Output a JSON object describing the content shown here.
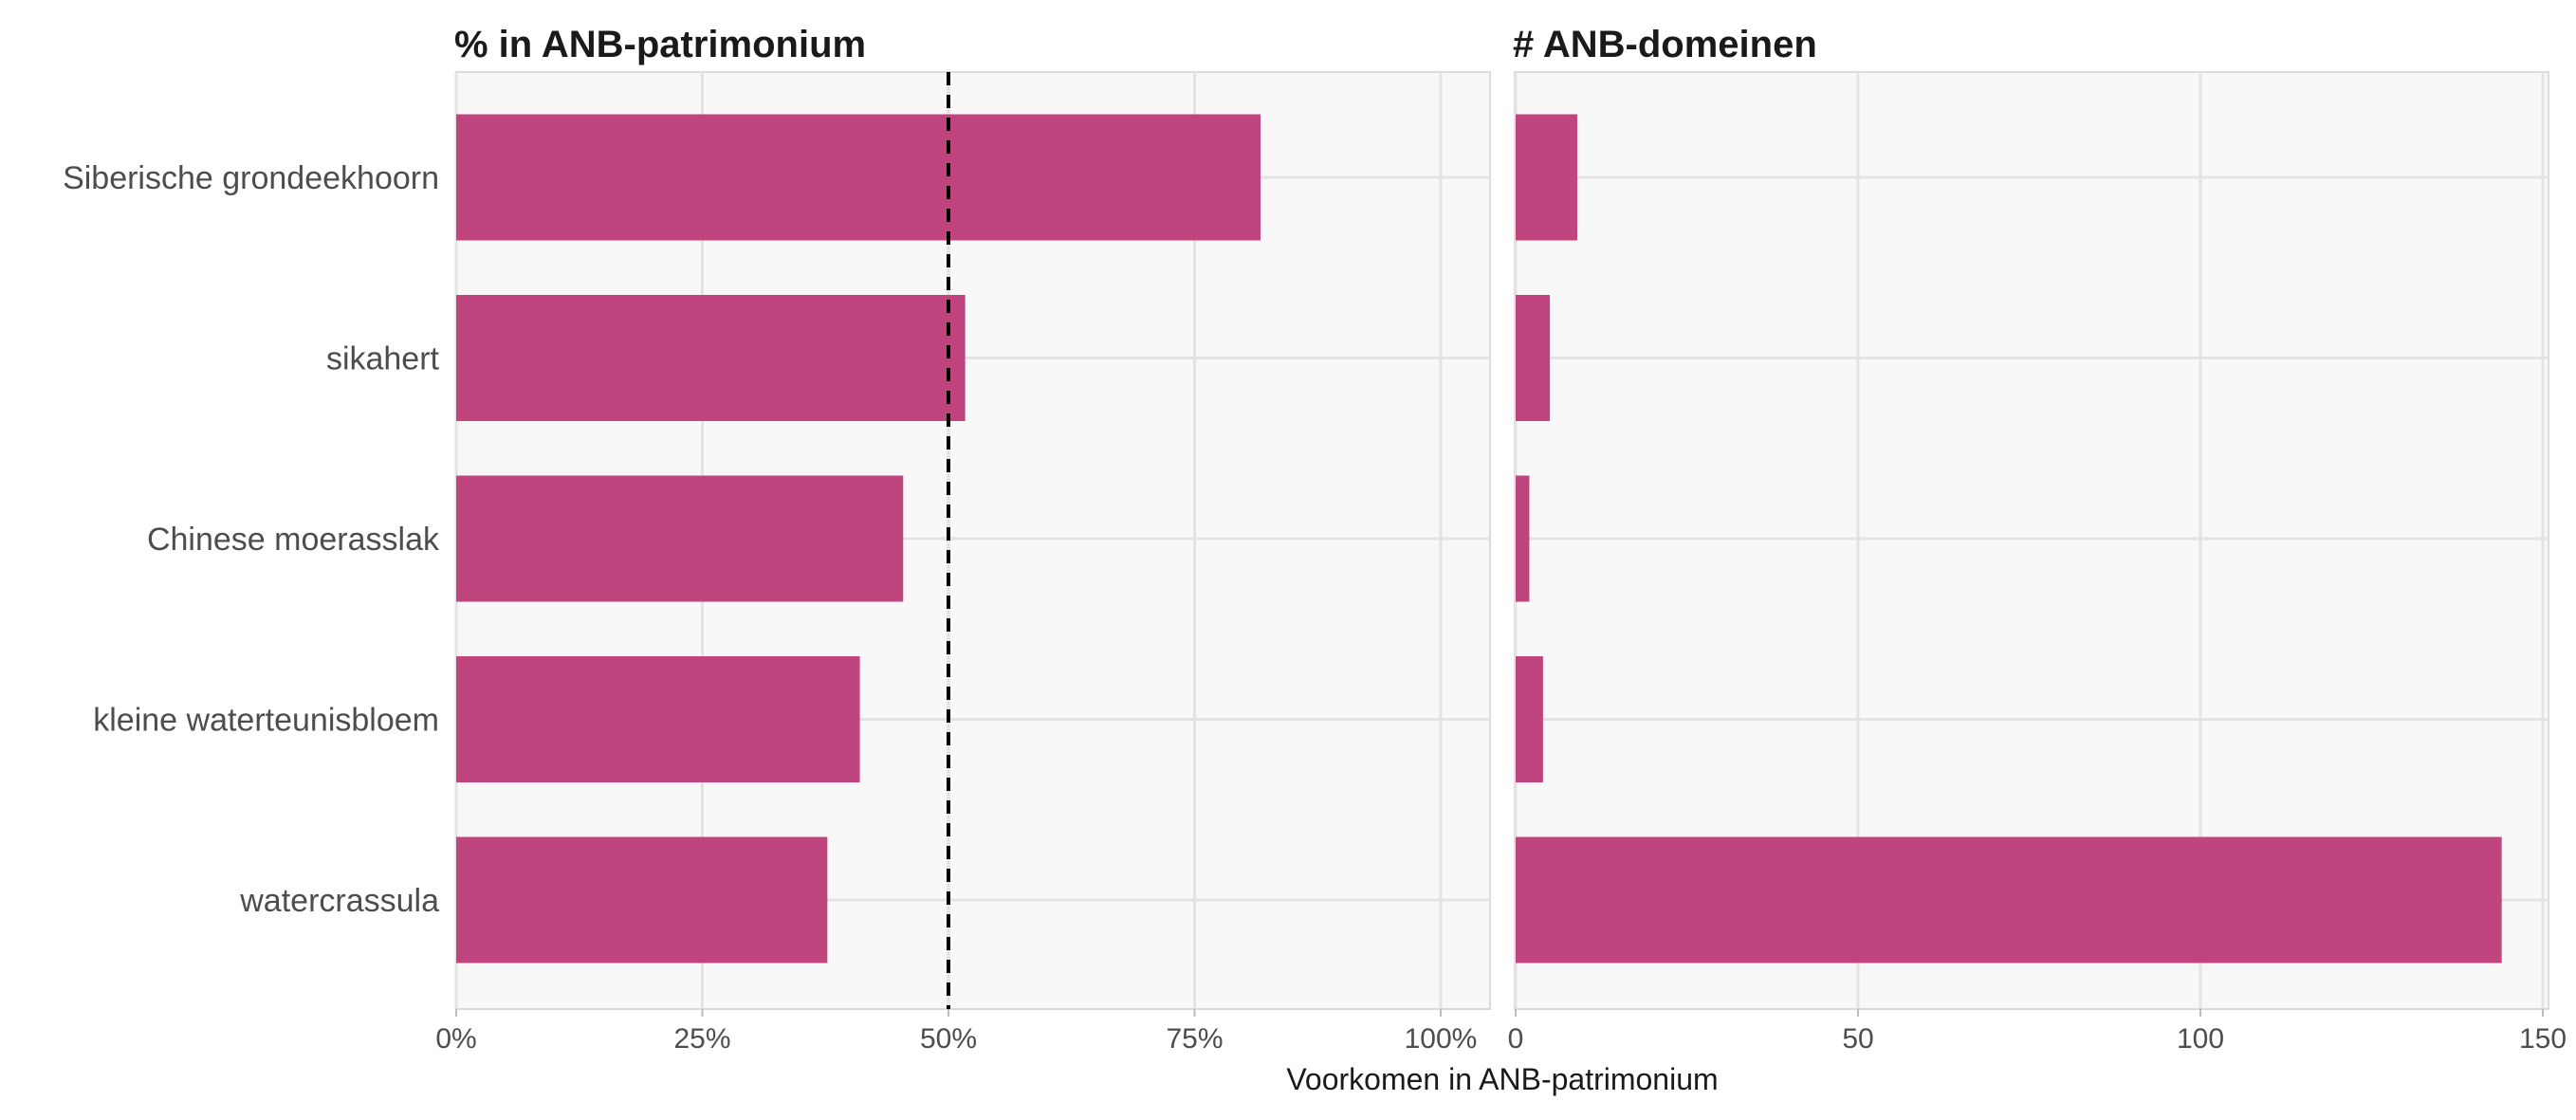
{
  "chart_data": {
    "type": "bar",
    "orientation": "horizontal",
    "categories": [
      "Siberische grondeekhoorn",
      "sikahert",
      "Chinese moerasslak",
      "kleine waterteunisbloem",
      "watercrassula"
    ],
    "xlabel": "Voorkomen in ANB-patrimonium",
    "bar_color": "#C0457F",
    "panel_background": "#F8F8F8",
    "grid": true,
    "panels": [
      {
        "title": "% in ANB-patrimonium",
        "values": [
          81.7,
          51.7,
          45.4,
          41.0,
          37.7
        ],
        "xlim": [
          0,
          100
        ],
        "ticks": [
          0,
          25,
          50,
          75,
          100
        ],
        "tick_labels": [
          "0%",
          "25%",
          "50%",
          "75%",
          "100%"
        ],
        "reference_line": 50
      },
      {
        "title": "# ANB-domeinen",
        "values": [
          9,
          5,
          2,
          4,
          144
        ],
        "xlim": [
          0,
          150
        ],
        "ticks": [
          0,
          50,
          100,
          150
        ],
        "tick_labels": [
          "0",
          "50",
          "100",
          "150"
        ]
      }
    ]
  }
}
